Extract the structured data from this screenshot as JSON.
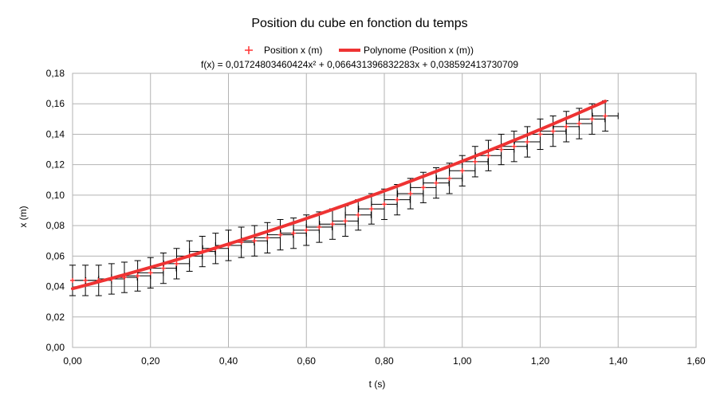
{
  "chart_data": {
    "type": "scatter",
    "title": "Position du cube en fonction du temps",
    "xlabel": "t (s)",
    "ylabel": "x (m)",
    "xlim": [
      0,
      1.6
    ],
    "ylim": [
      0,
      0.18
    ],
    "x_ticks": [
      "0,00",
      "0,20",
      "0,40",
      "0,60",
      "0,80",
      "1,00",
      "1,20",
      "1,40",
      "1,60"
    ],
    "y_ticks": [
      "0,00",
      "0,02",
      "0,04",
      "0,06",
      "0,08",
      "0,10",
      "0,12",
      "0,14",
      "0,16",
      "0,18"
    ],
    "grid": true,
    "legend_placement": "top",
    "trendline_equation": "f(x) = 0,01724803460424x² + 0,066431396832283x + 0,038592413730709",
    "error_bars": {
      "x": 0.033,
      "y": 0.01
    },
    "series": [
      {
        "name": "Position x (m)",
        "kind": "points",
        "color": "#ff3333",
        "x": [
          0.0,
          0.033,
          0.067,
          0.1,
          0.133,
          0.167,
          0.2,
          0.233,
          0.267,
          0.3,
          0.333,
          0.367,
          0.4,
          0.433,
          0.467,
          0.5,
          0.533,
          0.567,
          0.6,
          0.633,
          0.667,
          0.7,
          0.733,
          0.767,
          0.8,
          0.833,
          0.867,
          0.9,
          0.933,
          0.967,
          1.0,
          1.033,
          1.067,
          1.1,
          1.133,
          1.167,
          1.2,
          1.233,
          1.267,
          1.3,
          1.333,
          1.367
        ],
        "y": [
          0.044,
          0.044,
          0.044,
          0.045,
          0.046,
          0.047,
          0.049,
          0.052,
          0.055,
          0.06,
          0.063,
          0.065,
          0.067,
          0.069,
          0.07,
          0.072,
          0.074,
          0.075,
          0.077,
          0.079,
          0.081,
          0.083,
          0.087,
          0.091,
          0.094,
          0.097,
          0.101,
          0.105,
          0.108,
          0.111,
          0.116,
          0.122,
          0.126,
          0.13,
          0.132,
          0.135,
          0.14,
          0.142,
          0.145,
          0.147,
          0.15,
          0.152
        ]
      },
      {
        "name": "Polynome (Position x (m))",
        "kind": "trendline",
        "color": "#ee3333",
        "coefficients": [
          0.038592413730709,
          0.066431396832283,
          0.01724803460424
        ],
        "x_range": [
          0.0,
          1.367
        ]
      }
    ]
  }
}
